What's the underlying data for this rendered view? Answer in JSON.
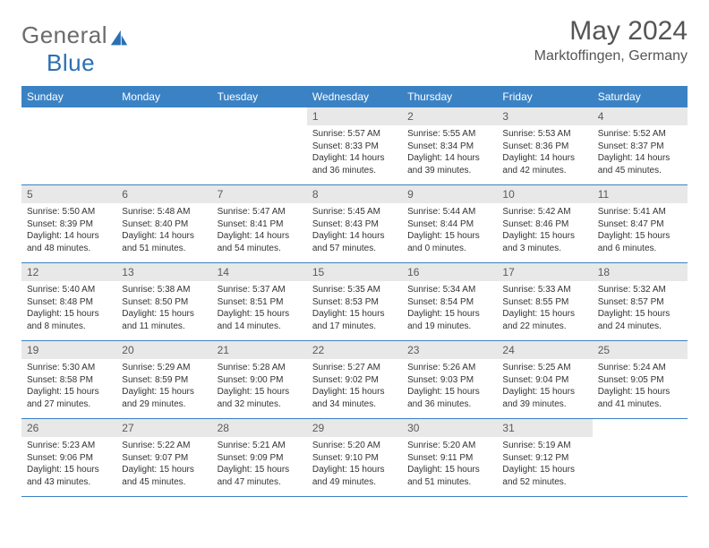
{
  "logo": {
    "text_general": "General",
    "text_blue": "Blue"
  },
  "header": {
    "title": "May 2024",
    "location": "Marktoffingen, Germany"
  },
  "colors": {
    "header_bg": "#3b82c4",
    "header_text": "#ffffff",
    "daynum_bg": "#e8e8e8",
    "daynum_text": "#5a5a5a",
    "border": "#3b82c4",
    "body_text": "#333333",
    "title_text": "#555555",
    "logo_gray": "#6b6b6b",
    "logo_blue": "#2a6fb5",
    "background": "#ffffff"
  },
  "weekdays": [
    "Sunday",
    "Monday",
    "Tuesday",
    "Wednesday",
    "Thursday",
    "Friday",
    "Saturday"
  ],
  "labels": {
    "sunrise": "Sunrise:",
    "sunset": "Sunset:",
    "daylight": "Daylight:"
  },
  "weeks": [
    [
      null,
      null,
      null,
      {
        "num": "1",
        "sunrise": "5:57 AM",
        "sunset": "8:33 PM",
        "daylight": "14 hours and 36 minutes."
      },
      {
        "num": "2",
        "sunrise": "5:55 AM",
        "sunset": "8:34 PM",
        "daylight": "14 hours and 39 minutes."
      },
      {
        "num": "3",
        "sunrise": "5:53 AM",
        "sunset": "8:36 PM",
        "daylight": "14 hours and 42 minutes."
      },
      {
        "num": "4",
        "sunrise": "5:52 AM",
        "sunset": "8:37 PM",
        "daylight": "14 hours and 45 minutes."
      }
    ],
    [
      {
        "num": "5",
        "sunrise": "5:50 AM",
        "sunset": "8:39 PM",
        "daylight": "14 hours and 48 minutes."
      },
      {
        "num": "6",
        "sunrise": "5:48 AM",
        "sunset": "8:40 PM",
        "daylight": "14 hours and 51 minutes."
      },
      {
        "num": "7",
        "sunrise": "5:47 AM",
        "sunset": "8:41 PM",
        "daylight": "14 hours and 54 minutes."
      },
      {
        "num": "8",
        "sunrise": "5:45 AM",
        "sunset": "8:43 PM",
        "daylight": "14 hours and 57 minutes."
      },
      {
        "num": "9",
        "sunrise": "5:44 AM",
        "sunset": "8:44 PM",
        "daylight": "15 hours and 0 minutes."
      },
      {
        "num": "10",
        "sunrise": "5:42 AM",
        "sunset": "8:46 PM",
        "daylight": "15 hours and 3 minutes."
      },
      {
        "num": "11",
        "sunrise": "5:41 AM",
        "sunset": "8:47 PM",
        "daylight": "15 hours and 6 minutes."
      }
    ],
    [
      {
        "num": "12",
        "sunrise": "5:40 AM",
        "sunset": "8:48 PM",
        "daylight": "15 hours and 8 minutes."
      },
      {
        "num": "13",
        "sunrise": "5:38 AM",
        "sunset": "8:50 PM",
        "daylight": "15 hours and 11 minutes."
      },
      {
        "num": "14",
        "sunrise": "5:37 AM",
        "sunset": "8:51 PM",
        "daylight": "15 hours and 14 minutes."
      },
      {
        "num": "15",
        "sunrise": "5:35 AM",
        "sunset": "8:53 PM",
        "daylight": "15 hours and 17 minutes."
      },
      {
        "num": "16",
        "sunrise": "5:34 AM",
        "sunset": "8:54 PM",
        "daylight": "15 hours and 19 minutes."
      },
      {
        "num": "17",
        "sunrise": "5:33 AM",
        "sunset": "8:55 PM",
        "daylight": "15 hours and 22 minutes."
      },
      {
        "num": "18",
        "sunrise": "5:32 AM",
        "sunset": "8:57 PM",
        "daylight": "15 hours and 24 minutes."
      }
    ],
    [
      {
        "num": "19",
        "sunrise": "5:30 AM",
        "sunset": "8:58 PM",
        "daylight": "15 hours and 27 minutes."
      },
      {
        "num": "20",
        "sunrise": "5:29 AM",
        "sunset": "8:59 PM",
        "daylight": "15 hours and 29 minutes."
      },
      {
        "num": "21",
        "sunrise": "5:28 AM",
        "sunset": "9:00 PM",
        "daylight": "15 hours and 32 minutes."
      },
      {
        "num": "22",
        "sunrise": "5:27 AM",
        "sunset": "9:02 PM",
        "daylight": "15 hours and 34 minutes."
      },
      {
        "num": "23",
        "sunrise": "5:26 AM",
        "sunset": "9:03 PM",
        "daylight": "15 hours and 36 minutes."
      },
      {
        "num": "24",
        "sunrise": "5:25 AM",
        "sunset": "9:04 PM",
        "daylight": "15 hours and 39 minutes."
      },
      {
        "num": "25",
        "sunrise": "5:24 AM",
        "sunset": "9:05 PM",
        "daylight": "15 hours and 41 minutes."
      }
    ],
    [
      {
        "num": "26",
        "sunrise": "5:23 AM",
        "sunset": "9:06 PM",
        "daylight": "15 hours and 43 minutes."
      },
      {
        "num": "27",
        "sunrise": "5:22 AM",
        "sunset": "9:07 PM",
        "daylight": "15 hours and 45 minutes."
      },
      {
        "num": "28",
        "sunrise": "5:21 AM",
        "sunset": "9:09 PM",
        "daylight": "15 hours and 47 minutes."
      },
      {
        "num": "29",
        "sunrise": "5:20 AM",
        "sunset": "9:10 PM",
        "daylight": "15 hours and 49 minutes."
      },
      {
        "num": "30",
        "sunrise": "5:20 AM",
        "sunset": "9:11 PM",
        "daylight": "15 hours and 51 minutes."
      },
      {
        "num": "31",
        "sunrise": "5:19 AM",
        "sunset": "9:12 PM",
        "daylight": "15 hours and 52 minutes."
      },
      null
    ]
  ]
}
